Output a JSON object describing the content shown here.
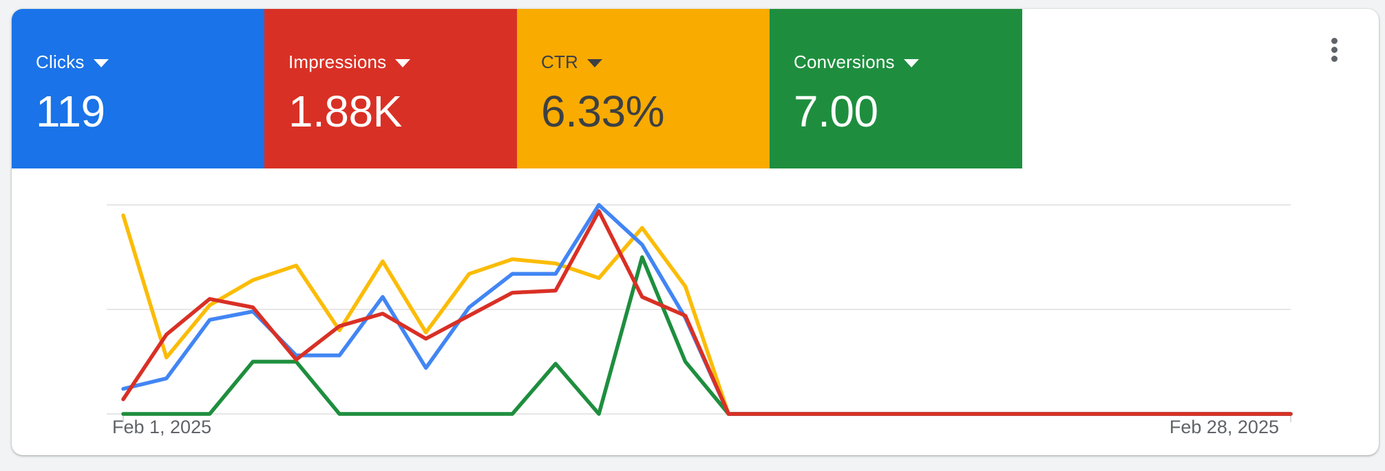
{
  "page": {
    "background_color": "#f1f3f4",
    "card_background": "#ffffff"
  },
  "metrics": [
    {
      "label": "Clicks",
      "value": "119",
      "bg": "#1a73e8",
      "text_color": "#ffffff",
      "line_color": "#4285f4"
    },
    {
      "label": "Impressions",
      "value": "1.88K",
      "bg": "#d93025",
      "text_color": "#ffffff",
      "line_color": "#d93025"
    },
    {
      "label": "CTR",
      "value": "6.33%",
      "bg": "#f9ab00",
      "text_color": "#3c4043",
      "line_color": "#fbbc04"
    },
    {
      "label": "Conversions",
      "value": "7.00",
      "bg": "#1e8e3e",
      "text_color": "#ffffff",
      "line_color": "#1e8e3e"
    }
  ],
  "menu": {
    "icon": "kebab-vertical",
    "color": "#5f6368"
  },
  "chart_data": {
    "type": "line",
    "title": "",
    "xlabel": "",
    "ylabel": "",
    "x_tick_labels": [
      "Feb 1, 2025",
      "Feb 28, 2025"
    ],
    "x_range": [
      "Feb 1, 2025",
      "Feb 28, 2025"
    ],
    "num_points": 28,
    "ylim": [
      0,
      100
    ],
    "y_scale_note": "each series normalized to percent of its own max; 3 unlabeled gridlines at 0/50/100",
    "gridline_values": [
      0,
      50,
      100
    ],
    "grid": true,
    "legend_position": "metric tiles above chart act as legend",
    "z_order": [
      "ctr",
      "conversions",
      "clicks",
      "impressions"
    ],
    "series": [
      {
        "key": "clicks",
        "name": "Clicks",
        "color": "#4285f4",
        "values": [
          12,
          17,
          45,
          49,
          28,
          28,
          56,
          22,
          51,
          67,
          67,
          100,
          81,
          46,
          0,
          0,
          0,
          0,
          0,
          0,
          0,
          0,
          0,
          0,
          0,
          0,
          0,
          0
        ]
      },
      {
        "key": "impressions",
        "name": "Impressions",
        "color": "#d93025",
        "values": [
          7,
          38,
          55,
          51,
          26,
          42,
          48,
          36,
          47,
          58,
          59,
          97,
          56,
          47,
          0,
          0,
          0,
          0,
          0,
          0,
          0,
          0,
          0,
          0,
          0,
          0,
          0,
          0
        ]
      },
      {
        "key": "ctr",
        "name": "CTR",
        "color": "#fbbc04",
        "values": [
          95,
          27,
          52,
          64,
          71,
          40,
          73,
          39,
          67,
          74,
          72,
          65,
          89,
          61,
          0,
          0,
          0,
          0,
          0,
          0,
          0,
          0,
          0,
          0,
          0,
          0,
          0,
          0
        ]
      },
      {
        "key": "conversions",
        "name": "Conversions",
        "color": "#1e8e3e",
        "values": [
          0,
          0,
          0,
          25,
          25,
          0,
          0,
          0,
          0,
          0,
          24,
          0,
          75,
          25,
          0,
          0,
          0,
          0,
          0,
          0,
          0,
          0,
          0,
          0,
          0,
          0,
          0,
          0
        ]
      }
    ],
    "gridline_color": "#e6e6e6",
    "tick_color": "#dadce0",
    "axis_label_color": "#5f6368"
  }
}
